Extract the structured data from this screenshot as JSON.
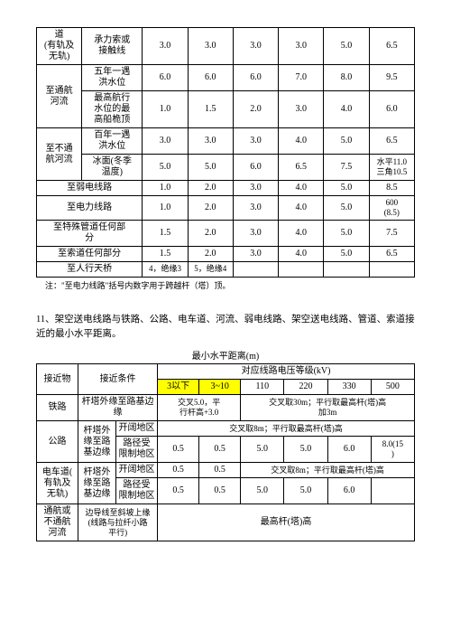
{
  "table1": {
    "rows": [
      {
        "h1": "道\n(有轨及\n无轨)",
        "h2": "承力索或\n接触线",
        "v": [
          "3.0",
          "3.0",
          "3.0",
          "3.0",
          "5.0",
          "6.5"
        ]
      },
      {
        "h1": "至通航\n河流",
        "h2": "五年一遇\n洪水位",
        "v": [
          "6.0",
          "6.0",
          "6.0",
          "7.0",
          "8.0",
          "9.5"
        ]
      },
      {
        "h1": "",
        "h2": "最高航行\n水位的最\n高船桅顶",
        "v": [
          "1.0",
          "1.5",
          "2.0",
          "3.0",
          "4.0",
          "6.0"
        ]
      },
      {
        "h1": "至不通\n航河流",
        "h2": "百年一遇\n洪水位",
        "v": [
          "3.0",
          "3.0",
          "3.0",
          "4.0",
          "5.0",
          "6.5"
        ]
      },
      {
        "h1": "",
        "h2": "冰面(冬季\n温度)",
        "v": [
          "5.0",
          "5.0",
          "6.0",
          "6.5",
          "7.5",
          "水平11.0\n三角10.5"
        ]
      },
      {
        "h1": "至弱电线路",
        "h2": "",
        "v": [
          "1.0",
          "2.0",
          "3.0",
          "4.0",
          "5.0",
          "8.5"
        ]
      },
      {
        "h1": "至电力线路",
        "h2": "",
        "v": [
          "1.0",
          "2.0",
          "3.0",
          "4.0",
          "5.0",
          "600\n(8.5)"
        ]
      },
      {
        "h1": "至特殊管道任何部\n分",
        "h2": "",
        "v": [
          "1.5",
          "2.0",
          "3.0",
          "4.0",
          "5.0",
          "7.5"
        ]
      },
      {
        "h1": "至索道任何部分",
        "h2": "",
        "v": [
          "1.5",
          "2.0",
          "3.0",
          "4.0",
          "5.0",
          "6.5"
        ]
      },
      {
        "h1": "至人行天桥",
        "h2": "",
        "v": [
          "4，绝缘3",
          "5，绝缘4",
          "",
          "",
          "",
          ""
        ]
      }
    ],
    "note": "注：\"至电力线路\"括号内数字用于跨越杆（塔）顶。"
  },
  "section11": {
    "title": "11、架空送电线路与铁路、公路、电车道、河流、弱电线路、架空送电线路、管道、索道接近的最小水平距离。",
    "caption": "最小水平距离(m)"
  },
  "table2": {
    "head": {
      "c1": "接近物",
      "c2": "接近条件",
      "c3": "对应线路电压等级(kV)",
      "volts": [
        "3以下",
        "3~10",
        "110",
        "220",
        "330",
        "500"
      ]
    },
    "rail": {
      "name": "铁路",
      "cond": "杆塔外缘至路基边\n缘",
      "c1": "交叉5.0，平\n行杆高+3.0",
      "c2": "交叉取30m；平行取最高杆(塔)高\n加3m"
    },
    "road": {
      "name": "公路",
      "cond": "杆塔外\n缘至路\n基边缘",
      "open": "开阔地区",
      "openv": "交叉取8m；平行取最高杆(塔)高",
      "lim": "路径受\n限制地区",
      "limv": [
        "0.5",
        "0.5",
        "5.0",
        "5.0",
        "6.0",
        "8.0(15\n)"
      ]
    },
    "tram": {
      "name": "电车道(\n有轨及\n无轨)",
      "cond": "杆塔外\n缘至路\n基边缘",
      "open": "开阔地区",
      "openv1": [
        "0.5",
        "0.5"
      ],
      "openv2": "交叉取8m；平行取最高杆(塔)高",
      "lim": "路径受\n限制地区",
      "limv": [
        "0.5",
        "0.5",
        "5.0",
        "5.0",
        "6.0",
        ""
      ]
    },
    "river": {
      "name": "通航或\n不通航\n河流",
      "cond": "边导线至斜坡上缘\n(线路与拉纤小路\n平行)",
      "val": "最高杆(塔)高"
    }
  }
}
